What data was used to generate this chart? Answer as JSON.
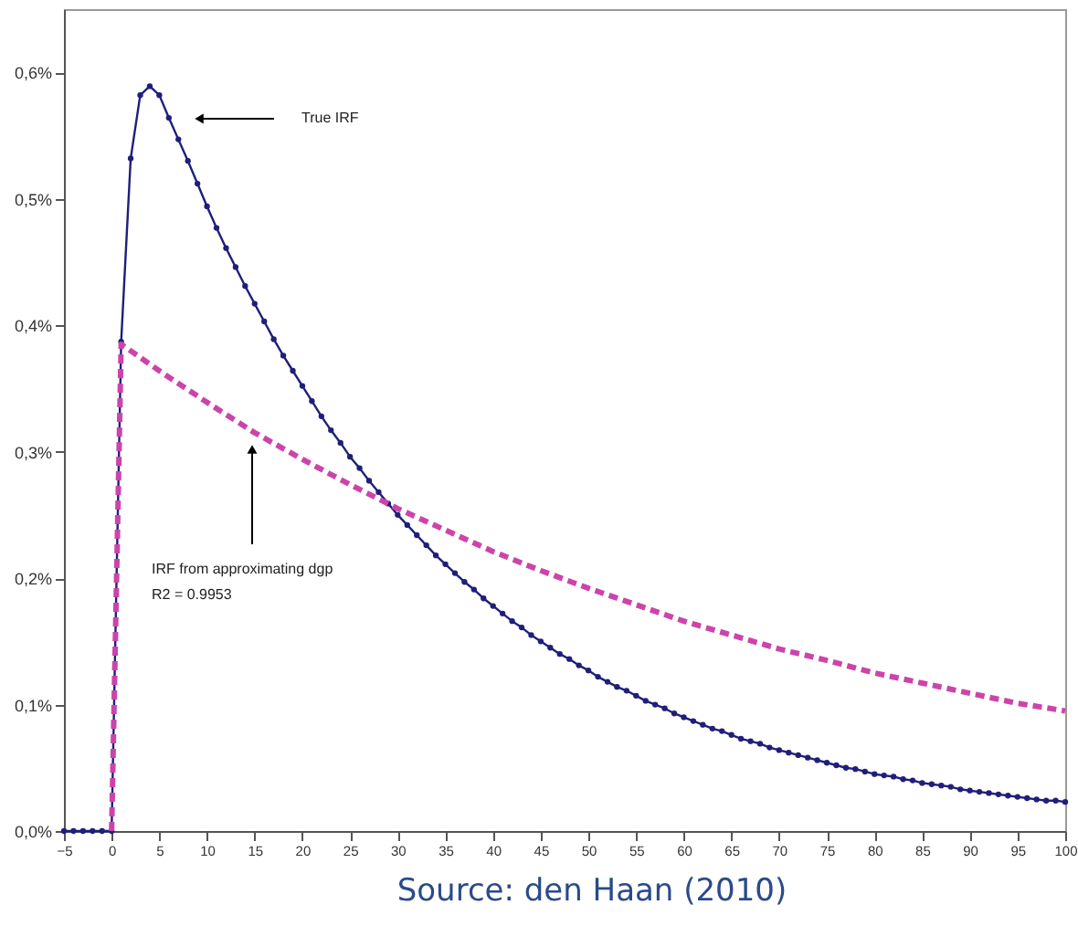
{
  "chart_data": {
    "type": "line",
    "xlim": [
      -5,
      100
    ],
    "xticks": [
      -5,
      0,
      5,
      10,
      15,
      20,
      25,
      30,
      35,
      40,
      45,
      50,
      55,
      60,
      65,
      70,
      75,
      80,
      85,
      90,
      95,
      100
    ],
    "ylim": [
      0,
      0.65
    ],
    "yticks": [
      {
        "value": 0,
        "label": "0,0%"
      },
      {
        "value": 0.1,
        "label": "0,1%"
      },
      {
        "value": 0.2,
        "label": "0,2%"
      },
      {
        "value": 0.3,
        "label": "0,3%"
      },
      {
        "value": 0.4,
        "label": "0,4%"
      },
      {
        "value": 0.5,
        "label": "0,5%"
      },
      {
        "value": 0.6,
        "label": "0,6%"
      }
    ],
    "grid": false,
    "series": [
      {
        "color": "#1f1f7a",
        "marker": "circle",
        "line_style": "solid",
        "x": [
          -5,
          -4,
          -3,
          -2,
          -1,
          0,
          1,
          2,
          3,
          4,
          5,
          6,
          7,
          8,
          9,
          10,
          11,
          12,
          13,
          14,
          15,
          16,
          17,
          18,
          19,
          20,
          21,
          22,
          23,
          24,
          25,
          26,
          27,
          28,
          29,
          30,
          31,
          32,
          33,
          34,
          35,
          36,
          37,
          38,
          39,
          40,
          41,
          42,
          43,
          44,
          45,
          46,
          47,
          48,
          49,
          50,
          51,
          52,
          53,
          54,
          55,
          56,
          57,
          58,
          59,
          60,
          61,
          62,
          63,
          64,
          65,
          66,
          67,
          68,
          69,
          70,
          71,
          72,
          73,
          74,
          75,
          76,
          77,
          78,
          79,
          80,
          81,
          82,
          83,
          84,
          85,
          86,
          87,
          88,
          89,
          90,
          91,
          92,
          93,
          94,
          95,
          96,
          97,
          98,
          99,
          100
        ],
        "values": [
          0,
          0,
          0,
          0,
          0,
          0,
          0.387,
          0.532,
          0.582,
          0.589,
          0.582,
          0.564,
          0.547,
          0.53,
          0.512,
          0.494,
          0.477,
          0.461,
          0.446,
          0.431,
          0.417,
          0.403,
          0.389,
          0.376,
          0.364,
          0.352,
          0.34,
          0.328,
          0.317,
          0.307,
          0.296,
          0.287,
          0.277,
          0.268,
          0.259,
          0.25,
          0.242,
          0.234,
          0.226,
          0.218,
          0.211,
          0.204,
          0.197,
          0.191,
          0.184,
          0.178,
          0.172,
          0.166,
          0.161,
          0.155,
          0.15,
          0.145,
          0.14,
          0.136,
          0.131,
          0.127,
          0.122,
          0.118,
          0.114,
          0.111,
          0.107,
          0.103,
          0.1,
          0.097,
          0.093,
          0.09,
          0.087,
          0.084,
          0.081,
          0.079,
          0.076,
          0.073,
          0.071,
          0.069,
          0.066,
          0.064,
          0.062,
          0.06,
          0.058,
          0.056,
          0.054,
          0.052,
          0.05,
          0.049,
          0.047,
          0.045,
          0.044,
          0.043,
          0.041,
          0.04,
          0.038,
          0.037,
          0.036,
          0.035,
          0.033,
          0.032,
          0.031,
          0.03,
          0.029,
          0.028,
          0.027,
          0.026,
          0.025,
          0.024,
          0.024,
          0.023
        ]
      },
      {
        "color": "#cc44aa",
        "marker": "none",
        "line_style": "dashed",
        "x": [
          0,
          1,
          5,
          10,
          15,
          20,
          25,
          30,
          35,
          40,
          45,
          50,
          55,
          60,
          65,
          70,
          75,
          80,
          85,
          90,
          95,
          100
        ],
        "values": [
          0,
          0.385,
          0.364,
          0.339,
          0.315,
          0.294,
          0.274,
          0.255,
          0.238,
          0.221,
          0.206,
          0.192,
          0.179,
          0.166,
          0.155,
          0.144,
          0.135,
          0.125,
          0.117,
          0.109,
          0.101,
          0.095
        ]
      }
    ],
    "annotations": [
      "True IRF",
      "IRF from approximating dgp",
      "R2 = 0.9953",
      "Source: den Haan (2010)"
    ]
  }
}
